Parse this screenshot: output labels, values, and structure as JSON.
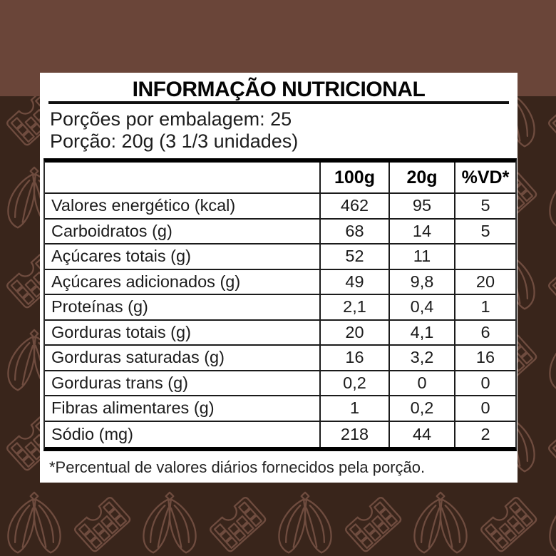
{
  "label": {
    "title": "INFORMAÇÃO NUTRICIONAL",
    "servings_per_package": "Porções por embalagem: 25",
    "portion": "Porção: 20g (3 1/3 unidades)",
    "footnote": "*Percentual de valores diários fornecidos pela porção."
  },
  "nutrition": {
    "columns": [
      "100g",
      "20g",
      "%VD*"
    ],
    "rows": [
      {
        "name": "Valores energético (kcal)",
        "per100": "462",
        "per20": "95",
        "vd": "5"
      },
      {
        "name": "Carboidratos (g)",
        "per100": "68",
        "per20": "14",
        "vd": "5"
      },
      {
        "name": "Açúcares totais (g)",
        "per100": "52",
        "per20": "11",
        "vd": ""
      },
      {
        "name": "Açúcares adicionados (g)",
        "per100": "49",
        "per20": "9,8",
        "vd": "20"
      },
      {
        "name": "Proteínas (g)",
        "per100": "2,1",
        "per20": "0,4",
        "vd": "1"
      },
      {
        "name": "Gorduras totais (g)",
        "per100": "20",
        "per20": "4,1",
        "vd": "6"
      },
      {
        "name": "Gorduras saturadas (g)",
        "per100": "16",
        "per20": "3,2",
        "vd": "16"
      },
      {
        "name": "Gorduras trans (g)",
        "per100": "0,2",
        "per20": "0",
        "vd": "0"
      },
      {
        "name": "Fibras alimentares (g)",
        "per100": "1",
        "per20": "0,2",
        "vd": "0"
      },
      {
        "name": "Sódio (mg)",
        "per100": "218",
        "per20": "44",
        "vd": "2"
      }
    ]
  },
  "decor": {
    "icons": [
      "cocoa-pod-icon",
      "chocolate-bar-icon"
    ],
    "colors": {
      "top_band": "#6A4539",
      "background": "#39251B",
      "pattern_stroke": "#6F4C3F",
      "card": "#FFFFFF",
      "ink": "#1D1D1D",
      "rule": "#000000"
    }
  }
}
